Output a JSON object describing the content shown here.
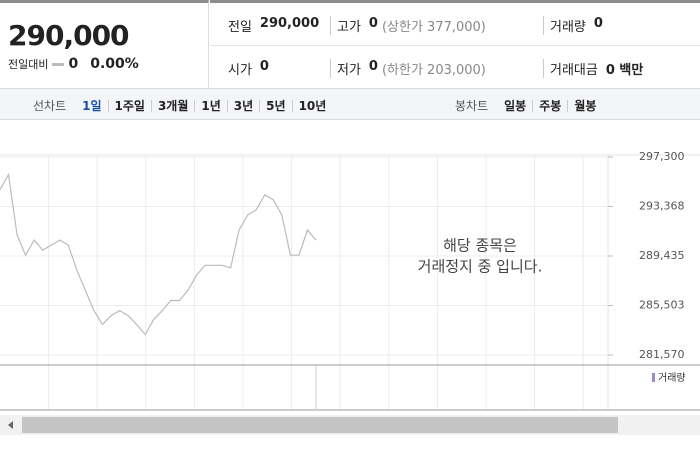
{
  "header": {
    "price": "290,000",
    "change_label": "전일대비",
    "change": "0",
    "change_rate": "0.00%"
  },
  "summary": {
    "rows": [
      [
        {
          "label": "전일",
          "value": "290,000"
        },
        {
          "label": "고가",
          "value": "0",
          "note": "(상한가 377,000)"
        },
        {
          "label": "거래량",
          "value": "0"
        }
      ],
      [
        {
          "label": "시가",
          "value": "0"
        },
        {
          "label": "저가",
          "value": "0",
          "note": "(하한가 203,000)"
        },
        {
          "label": "거래대금",
          "value": "0 백만"
        }
      ]
    ]
  },
  "toolbar": {
    "line_label": "선차트",
    "line_periods": [
      "1일",
      "1주일",
      "3개월",
      "1년",
      "3년",
      "5년",
      "10년"
    ],
    "selected": 0,
    "candle_label": "봉차트",
    "candle_periods": [
      "일봉",
      "주봉",
      "월봉"
    ]
  },
  "chart_data": {
    "type": "line",
    "color": "#bbbbbb",
    "values": [
      294700,
      295900,
      291100,
      289500,
      290700,
      289900,
      290300,
      290700,
      290300,
      288300,
      286700,
      285100,
      284000,
      284700,
      285100,
      284700,
      284000,
      283200,
      284400,
      285100,
      285900,
      285900,
      286700,
      287900,
      288700,
      288700,
      288700,
      288500,
      291500,
      292700,
      293100,
      294300,
      293900,
      292700,
      289500,
      289500,
      291500,
      290700
    ],
    "ylim": [
      281570,
      297300
    ],
    "yticks": [
      {
        "value": 281570,
        "label": "281,570"
      },
      {
        "value": 285503,
        "label": "285,503"
      },
      {
        "value": 289435,
        "label": "289,435"
      },
      {
        "value": 293368,
        "label": "293,368"
      },
      {
        "value": 297300,
        "label": "297,300"
      }
    ],
    "grid": true,
    "annotation": [
      "해당 종목은",
      "거래정지 중 입니다."
    ],
    "volume_legend": "거래량"
  }
}
